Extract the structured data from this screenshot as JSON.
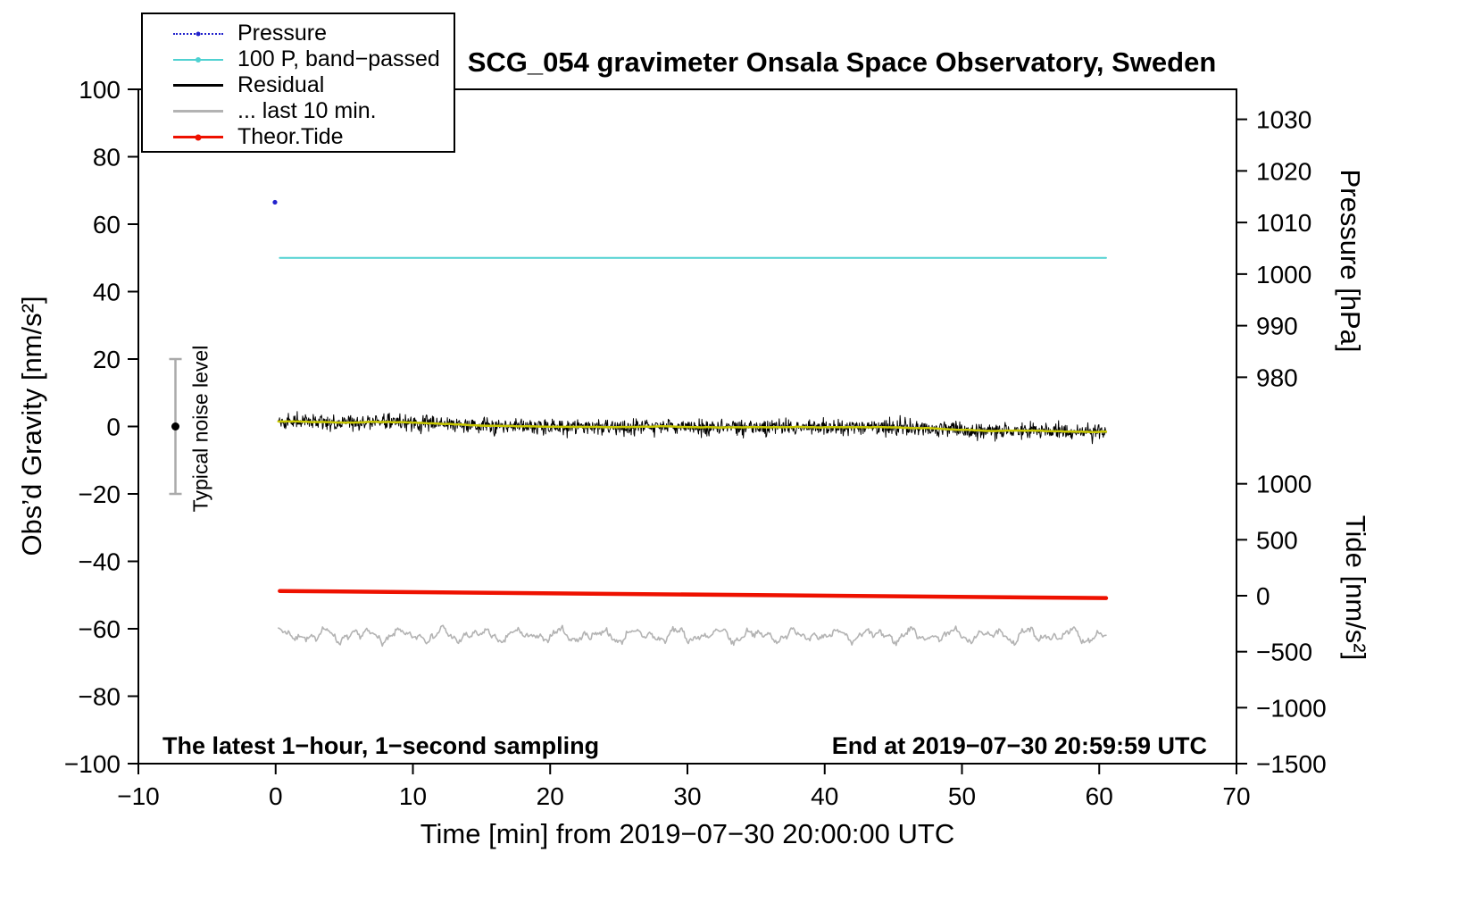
{
  "page": {
    "background": "#ffffff"
  },
  "chart_data": {
    "type": "line",
    "title": "SCG_054 gravimeter Onsala Space Observatory, Sweden",
    "xlabel": "Time [min] from 2019−07−30 20:00:00 UTC",
    "x_range": [
      -10,
      70
    ],
    "x_ticks": [
      -10,
      0,
      10,
      20,
      30,
      40,
      50,
      60,
      70
    ],
    "grid": "off",
    "legend_position": "top-left",
    "axes": {
      "gravity": {
        "label": "Obs’d Gravity [nm/s²]",
        "range": [
          -100,
          100
        ],
        "ticks": [
          -100,
          -80,
          -60,
          -40,
          -20,
          0,
          20,
          40,
          60,
          80,
          100
        ]
      },
      "pressure": {
        "label": "Pressure [hPa]",
        "ticks": [
          {
            "value": 1030,
            "g": 91.1
          },
          {
            "value": 1020,
            "g": 75.8
          },
          {
            "value": 1010,
            "g": 60.5
          },
          {
            "value": 1000,
            "g": 45.2
          },
          {
            "value": 990,
            "g": 29.9
          },
          {
            "value": 980,
            "g": 14.6
          }
        ]
      },
      "tide": {
        "label": "Tide [nm/s²]",
        "ticks": [
          {
            "value": 1000,
            "g": -17.0
          },
          {
            "value": 500,
            "g": -33.6
          },
          {
            "value": 0,
            "g": -50.2
          },
          {
            "value": -500,
            "g": -66.8
          },
          {
            "value": -1000,
            "g": -83.4
          },
          {
            "value": -1500,
            "g": -100.0
          }
        ]
      }
    },
    "legend": [
      {
        "label": "Pressure",
        "color": "#2222cc",
        "style": "dots"
      },
      {
        "label": "100 P, band−passed",
        "color": "#4fd1d1",
        "style": "line-dot"
      },
      {
        "label": "Residual",
        "color": "#000000",
        "style": "line"
      },
      {
        "label": "... last 10 min.",
        "color": "#b3b3b3",
        "style": "line"
      },
      {
        "label": "Theor.Tide",
        "color": "#ee1100",
        "style": "line-dot-thick"
      }
    ],
    "series": {
      "pressure_point": {
        "name": "Pressure",
        "color": "#2222cc",
        "x": -0.05,
        "y": 66.5,
        "pressure_hpa": 1014
      },
      "pressure_bandpassed": {
        "name": "100 P, band−passed",
        "color": "#4fd1d1",
        "y": 50,
        "x_start": 0.3,
        "x_end": 60.5
      },
      "residual": {
        "name": "Residual",
        "color": "#000000",
        "x_start": 0.2,
        "x_end": 60.5,
        "mean_start": 1.0,
        "mean_end": -0.8,
        "amplitude": 4,
        "seed": 42
      },
      "residual_smoothed": {
        "name": "Residual smoothed",
        "color": "#c8c800"
      },
      "theor_tide": {
        "name": "Theor.Tide",
        "color": "#ee1100",
        "x_start": 0.3,
        "x_end": 60.5,
        "y_start": -48.8,
        "y_end": -50.9,
        "tide_start_nms2": 40,
        "tide_end_nms2": -25
      },
      "residual_last10": {
        "name": "... last 10 min.",
        "color": "#b3b3b3",
        "x_start": 0.2,
        "x_end": 60.5,
        "center": -62,
        "amplitude": 3,
        "seed": 7
      }
    },
    "noise_bar": {
      "x": -7.3,
      "center": 0,
      "half_range": 20,
      "label": "Typical noise level"
    },
    "notes": {
      "bottom_left": "The latest 1−hour, 1−second sampling",
      "bottom_right": "End at 2019−07−30 20:59:59 UTC"
    }
  }
}
